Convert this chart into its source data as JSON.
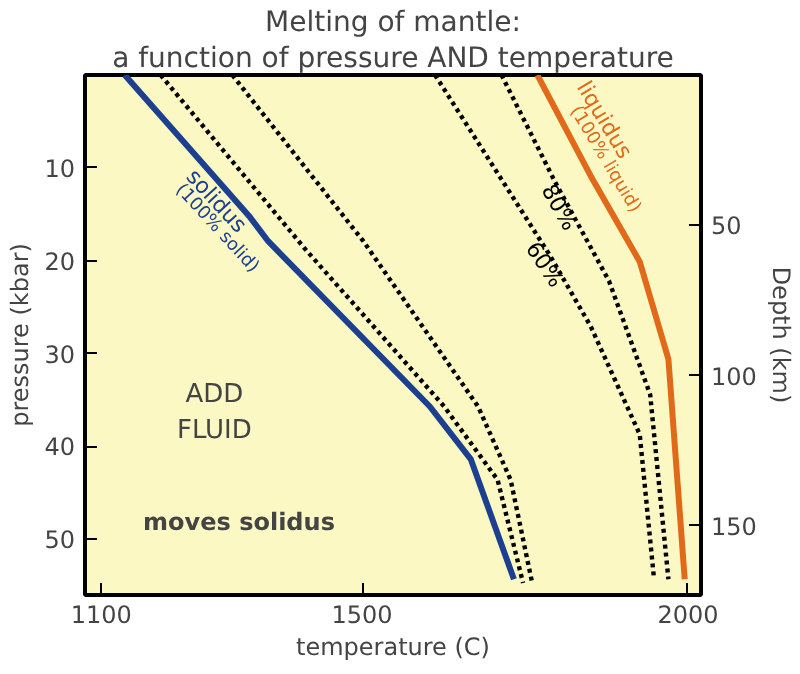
{
  "chart_data": {
    "type": "line",
    "title": "Melting of mantle:",
    "subtitle": "a function of pressure AND temperature",
    "xlabel": "temperature (C)",
    "ylabel": "pressure (kbar)",
    "y2label": "Depth (km)",
    "xlim": [
      1075,
      2020
    ],
    "xticks": [
      1100,
      1500,
      2000
    ],
    "ylim": [
      56,
      0
    ],
    "yticks": [
      10,
      20,
      30,
      40,
      50
    ],
    "y2lim": [
      173,
      0
    ],
    "y2ticks": [
      50,
      100,
      150
    ],
    "grid": false,
    "series": [
      {
        "name": "solidus",
        "color": "#1c3f8f",
        "line_style": "solid",
        "x": [
          1136,
          1328,
          1356,
          1604,
          1667,
          1733
        ],
        "values": [
          0,
          15.3,
          17.9,
          35.7,
          41.4,
          54.3
        ]
      },
      {
        "color": "#000000",
        "line_style": "dotted",
        "x": [
          1191,
          1411,
          1626,
          1708,
          1747
        ],
        "values": [
          0,
          18.6,
          35.7,
          43.6,
          54.7
        ]
      },
      {
        "color": "#000000",
        "line_style": "dotted",
        "x": [
          1301,
          1502,
          1678,
          1728,
          1761
        ],
        "values": [
          0,
          17.9,
          35.7,
          43.6,
          54.7
        ]
      },
      {
        "name": "60%",
        "color": "#000000",
        "line_style": "dotted",
        "x": [
          1612,
          1788,
          1851,
          1926,
          1948
        ],
        "values": [
          0,
          19.4,
          27.1,
          38.7,
          54.3
        ]
      },
      {
        "name": "80%",
        "color": "#000000",
        "line_style": "dotted",
        "x": [
          1714,
          1796,
          1879,
          1942,
          1970
        ],
        "values": [
          0,
          11.5,
          22.2,
          34.4,
          54.3
        ]
      },
      {
        "name": "liquidus",
        "color": "#e06a1a",
        "line_style": "solid",
        "x": [
          1769,
          1851,
          1926,
          1970,
          1995
        ],
        "values": [
          0,
          10.9,
          20.1,
          30.6,
          54.3
        ]
      }
    ],
    "annotations": [
      "(100% solid)",
      "(100% liquid)",
      "ADD\nFLUID",
      "moves solidus"
    ]
  }
}
